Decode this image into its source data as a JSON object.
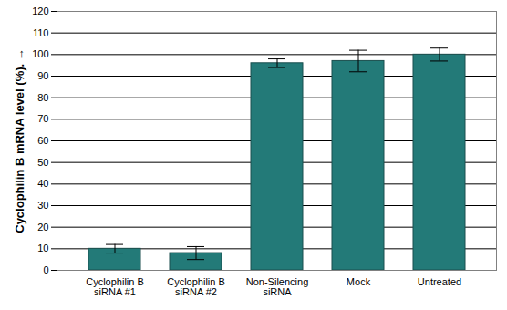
{
  "chart_data": {
    "type": "bar",
    "y_label": "Cyclophilin B mRNA level (%).",
    "categories": [
      "Cyclophilin B\nsiRNA #1",
      "Cyclophilin B\nsiRNA #2",
      "Non-Silencing\nsiRNA",
      "Mock",
      "Untreated"
    ],
    "values": [
      10,
      8,
      96,
      97,
      100
    ],
    "errors": [
      2,
      3,
      2,
      5,
      3
    ],
    "color": "#237a78",
    "ylim": [
      0,
      120
    ],
    "yticks": [
      0,
      10,
      20,
      30,
      40,
      50,
      60,
      70,
      80,
      90,
      100,
      110,
      120
    ],
    "grid": true
  }
}
